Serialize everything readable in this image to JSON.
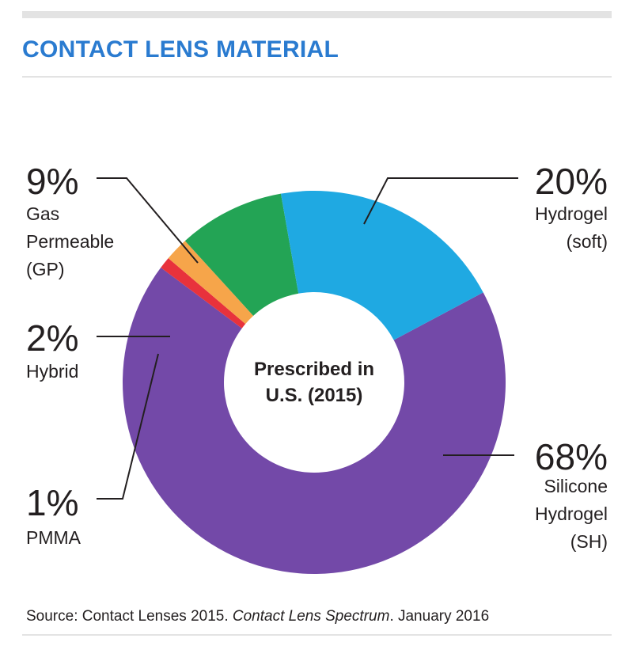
{
  "title": "CONTACT LENS MATERIAL",
  "source": {
    "prefix": "Source: Contact Lenses 2015. ",
    "italic": "Contact Lens Spectrum",
    "suffix": ". January 2016"
  },
  "chart_data": {
    "type": "pie",
    "donut": true,
    "center_label": [
      "Prescribed in",
      "U.S. (2015)"
    ],
    "slices": [
      {
        "name": "Silicone Hydrogel (SH)",
        "value": 68,
        "pct_label": "68%",
        "label_lines": [
          "Silicone",
          "Hydrogel",
          "(SH)"
        ],
        "color": "#7349a8"
      },
      {
        "name": "PMMA",
        "value": 1,
        "pct_label": "1%",
        "label_lines": [
          "PMMA"
        ],
        "color": "#e8323c"
      },
      {
        "name": "Hybrid",
        "value": 2,
        "pct_label": "2%",
        "label_lines": [
          "Hybrid"
        ],
        "color": "#f6a54a"
      },
      {
        "name": "Gas Permeable (GP)",
        "value": 9,
        "pct_label": "9%",
        "label_lines": [
          "Gas",
          "Permeable",
          "(GP)"
        ],
        "color": "#23a455"
      },
      {
        "name": "Hydrogel (soft)",
        "value": 20,
        "pct_label": "20%",
        "label_lines": [
          "Hydrogel",
          "(soft)"
        ],
        "color": "#1fa9e2"
      }
    ]
  }
}
